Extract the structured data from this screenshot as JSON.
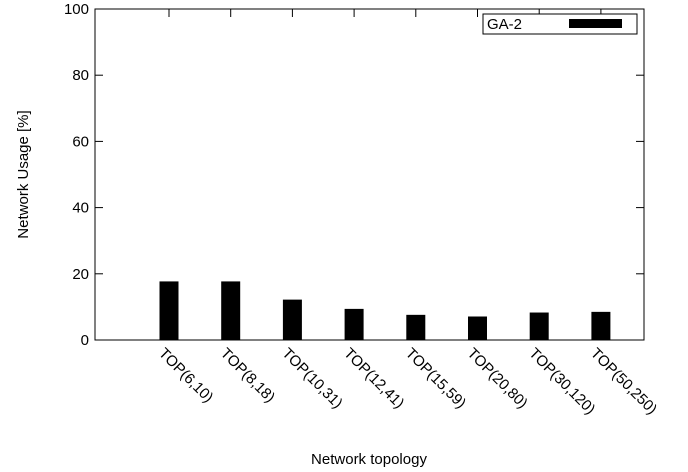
{
  "chart_data": {
    "type": "bar",
    "xlabel": "Network topology",
    "ylabel": "Network Usage [%]",
    "ylim": [
      0,
      100
    ],
    "yticks": [
      0,
      20,
      40,
      60,
      80,
      100
    ],
    "categories": [
      "TOP(6,10)",
      "TOP(8,18)",
      "TOP(10,31)",
      "TOP(12,41)",
      "TOP(15,59)",
      "TOP(20,80)",
      "TOP(30,120)",
      "TOP(50,250)"
    ],
    "series": [
      {
        "name": "GA-2",
        "color": "#000000",
        "values": [
          17.7,
          17.7,
          12.2,
          9.4,
          7.6,
          7.1,
          8.3,
          8.5
        ]
      }
    ],
    "legend": "top-right",
    "grid": false
  }
}
